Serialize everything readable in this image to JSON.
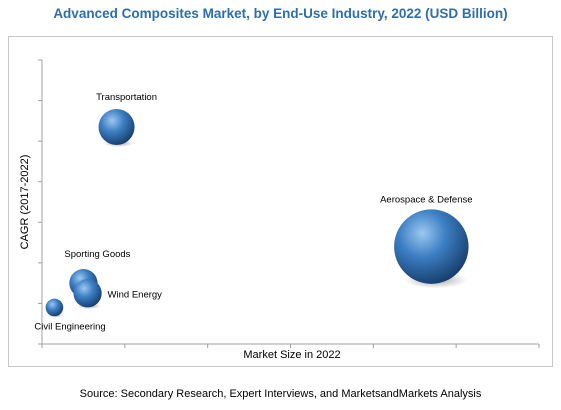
{
  "chart_data": {
    "type": "scatter",
    "title": "Advanced Composites Market, by End-Use Industry, 2022 (USD Billion)",
    "xlabel": "Market Size in 2022",
    "ylabel": "CAGR (2017-2022)",
    "grid": false,
    "bubble_color": "#2f6ea7",
    "title_color": "#2f6ea7",
    "points": [
      {
        "label": "Transportation",
        "x": 9.0,
        "y": 10.7,
        "size": 1.0
      },
      {
        "label": "Aerospace & Defense",
        "x": 47.0,
        "y": 4.8,
        "size": 5.2
      },
      {
        "label": "Sporting Goods",
        "x": 5.0,
        "y": 3.0,
        "size": 0.55
      },
      {
        "label": "Wind Energy",
        "x": 5.5,
        "y": 2.5,
        "size": 0.55
      },
      {
        "label": "Civil Engineering",
        "x": 1.5,
        "y": 1.8,
        "size": 0.15
      }
    ]
  },
  "source": "Source: Secondary Research, Expert Interviews, and MarketsandMarkets Analysis"
}
